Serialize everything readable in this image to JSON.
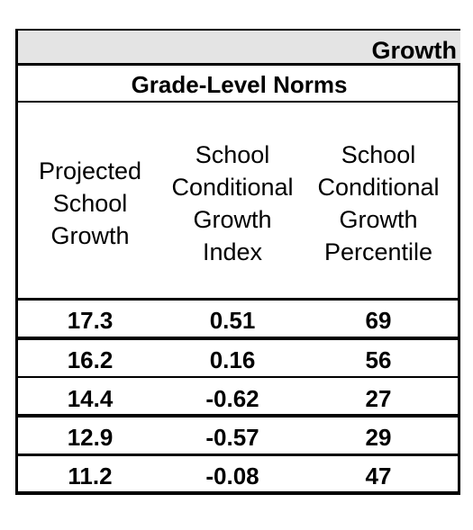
{
  "table": {
    "group_title": "Growth",
    "subheader": "Grade-Level Norms",
    "columns": [
      {
        "lines": [
          "Projected",
          "School",
          "Growth"
        ]
      },
      {
        "lines": [
          "School",
          "Conditional",
          "Growth",
          "Index"
        ]
      },
      {
        "lines": [
          "School",
          "Conditional",
          "Growth",
          "Percentile"
        ]
      }
    ],
    "rows": [
      [
        "17.3",
        "0.51",
        "69"
      ],
      [
        "16.2",
        "0.16",
        "56"
      ],
      [
        "14.4",
        "-0.62",
        "27"
      ],
      [
        "12.9",
        "-0.57",
        "29"
      ],
      [
        "11.2",
        "-0.08",
        "47"
      ]
    ]
  }
}
